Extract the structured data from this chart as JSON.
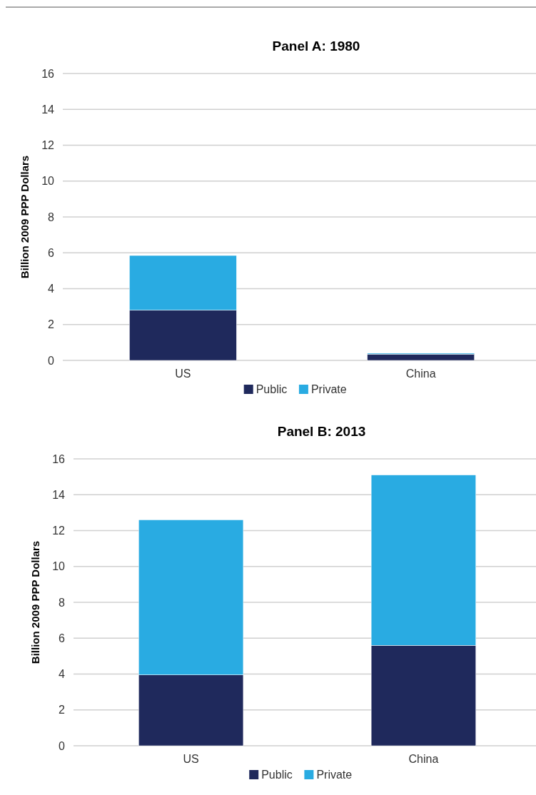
{
  "chart_data": [
    {
      "type": "bar",
      "title": "Panel A: 1980",
      "ylabel": "Billion 2009 PPP Dollars",
      "categories": [
        "US",
        "China"
      ],
      "stacked": true,
      "ylim": [
        0,
        16
      ],
      "yticks": [
        0,
        2,
        4,
        6,
        8,
        10,
        12,
        14,
        16
      ],
      "grid": "y",
      "legend": "bottom",
      "series": [
        {
          "name": "Public",
          "color": "#1f295c",
          "values": [
            2.8,
            0.35
          ]
        },
        {
          "name": "Private",
          "color": "#29abe2",
          "values": [
            3.05,
            0.05
          ]
        }
      ]
    },
    {
      "type": "bar",
      "title": "Panel B: 2013",
      "ylabel": "Billion 2009 PPP Dollars",
      "categories": [
        "US",
        "China"
      ],
      "stacked": true,
      "ylim": [
        0,
        16
      ],
      "yticks": [
        0,
        2,
        4,
        6,
        8,
        10,
        12,
        14,
        16
      ],
      "grid": "y",
      "legend": "bottom",
      "series": [
        {
          "name": "Public",
          "color": "#1f295c",
          "values": [
            3.95,
            5.6
          ]
        },
        {
          "name": "Private",
          "color": "#29abe2",
          "values": [
            8.65,
            9.5
          ]
        }
      ]
    }
  ]
}
